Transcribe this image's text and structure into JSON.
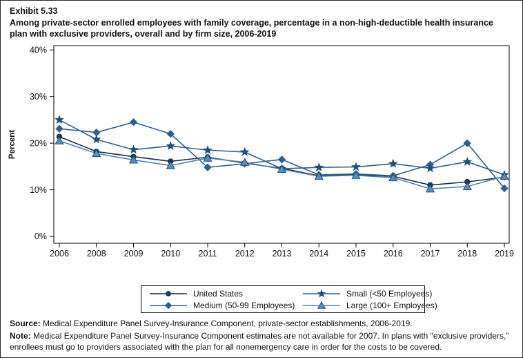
{
  "page": {
    "exhibit_label": "Exhibit 5.33",
    "title": "Among private-sector enrolled employees with family coverage, percentage in a non-high-deductible health insurance plan with exclusive providers, overall and by firm size, 2006-2019"
  },
  "chart_data": {
    "type": "line",
    "title": "Among private-sector enrolled employees with family coverage, percentage in a non-high-deductible health insurance plan with exclusive providers, overall and by firm size, 2006-2019",
    "xlabel": "",
    "ylabel": "Percent",
    "ylim": [
      0,
      40
    ],
    "y_ticks": [
      0,
      10,
      20,
      30,
      40
    ],
    "y_tick_labels": [
      "0%",
      "10%",
      "20%",
      "30%",
      "40%"
    ],
    "grid": false,
    "legend_position": "bottom",
    "x": [
      "2006",
      "2008",
      "2009",
      "2010",
      "2011",
      "2012",
      "2013",
      "2014",
      "2015",
      "2016",
      "2017",
      "2018",
      "2019"
    ],
    "series": [
      {
        "name": "United States",
        "marker": "circle",
        "line_color": "#1B2A44",
        "marker_color": "#17375E",
        "marker_stroke": "#17375E",
        "values": [
          21.4,
          18.2,
          17.1,
          16.1,
          17.0,
          15.7,
          14.6,
          13.0,
          13.2,
          12.9,
          11.0,
          11.7,
          12.7
        ]
      },
      {
        "name": "Medium (50-99 Employees)",
        "marker": "diamond",
        "line_color": "#2E5F8F",
        "marker_color": "#2E5F8F",
        "marker_stroke": "#2E5F8F",
        "values": [
          23.1,
          22.3,
          24.5,
          22.0,
          14.8,
          15.6,
          16.5,
          13.2,
          13.4,
          13.0,
          15.4,
          20.0,
          10.3
        ]
      },
      {
        "name": "Small (<50 Employees)",
        "marker": "star",
        "line_color": "#2E5F8F",
        "marker_color": "#1F4E79",
        "marker_stroke": "#1F4E79",
        "values": [
          25.0,
          20.8,
          18.6,
          19.4,
          18.5,
          18.1,
          14.5,
          14.8,
          14.9,
          15.6,
          14.6,
          16.0,
          13.2
        ]
      },
      {
        "name": "Large (100+ Employees)",
        "marker": "triangle",
        "line_color": "#4E81AD",
        "marker_color": "#5B8DB8",
        "marker_stroke": "#1F4E79",
        "values": [
          20.5,
          17.8,
          16.4,
          15.2,
          16.8,
          15.9,
          14.4,
          12.9,
          13.1,
          12.6,
          10.2,
          10.7,
          12.9
        ]
      }
    ]
  },
  "legend": {
    "items": [
      {
        "label": "United States",
        "series": 0
      },
      {
        "label": "Small (<50 Employees)",
        "series": 2
      },
      {
        "label": "Medium (50-99 Employees)",
        "series": 1
      },
      {
        "label": "Large (100+ Employees)",
        "series": 3
      }
    ]
  },
  "footer": {
    "source_label": "Source:",
    "source_text": " Medical Expenditure Panel Survey-Insurance Component, private-sector establishments, 2006-2019.",
    "note_label": "Note:",
    "note_text": " Medical Expenditure Panel Survey-Insurance Component estimates are not available for 2007. In plans with \"exclusive providers,\" enrollees must go to providers associated with the plan for all nonemergency care in order for the costs to be covered."
  }
}
